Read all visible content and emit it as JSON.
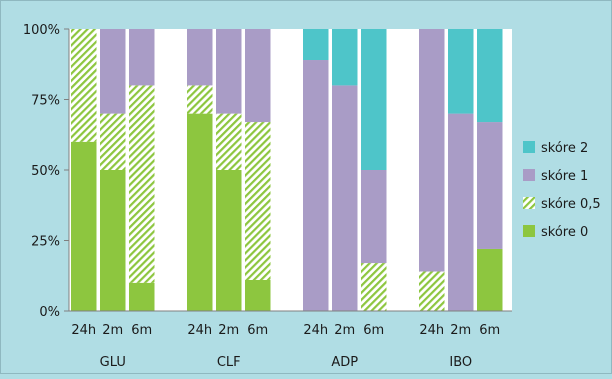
{
  "chart_data": {
    "type": "bar",
    "stacked": true,
    "title": "",
    "xlabel": "",
    "ylabel": "",
    "ylim": [
      0,
      100
    ],
    "y_ticks": [
      "0%",
      "25%",
      "50%",
      "75%",
      "100%"
    ],
    "y_tick_values": [
      0,
      25,
      50,
      75,
      100
    ],
    "groups": [
      "GLU",
      "CLF",
      "ADP",
      "IBO"
    ],
    "time_points": [
      "24h",
      "2m",
      "6m"
    ],
    "categories": [
      "24h",
      "2m",
      "6m",
      "24h",
      "2m",
      "6m",
      "24h",
      "2m",
      "6m",
      "24h",
      "2m",
      "6m"
    ],
    "series": [
      {
        "name": "skóre 0",
        "color": "#8dc63f",
        "pattern": "solid",
        "values": [
          60,
          50,
          10,
          70,
          50,
          11,
          0,
          0,
          0,
          0,
          0,
          22
        ]
      },
      {
        "name": "skóre 0,5",
        "color": "#8dc63f",
        "pattern": "diagonal-hatch",
        "values": [
          40,
          20,
          70,
          10,
          20,
          56,
          0,
          0,
          17,
          14,
          0,
          0
        ]
      },
      {
        "name": "skóre 1",
        "color": "#a99cc6",
        "pattern": "solid",
        "values": [
          0,
          30,
          20,
          20,
          30,
          33,
          89,
          80,
          33,
          86,
          70,
          45
        ]
      },
      {
        "name": "skóre 2",
        "color": "#4ec5c9",
        "pattern": "solid",
        "values": [
          0,
          0,
          0,
          0,
          0,
          0,
          11,
          20,
          50,
          0,
          30,
          33
        ]
      }
    ],
    "legend_position": "right",
    "legend_order": [
      "skóre 2",
      "skóre 1",
      "skóre 0,5",
      "skóre 0"
    ],
    "grid": false,
    "plot_background": "#ffffff",
    "chart_background": "#b0dde4"
  }
}
